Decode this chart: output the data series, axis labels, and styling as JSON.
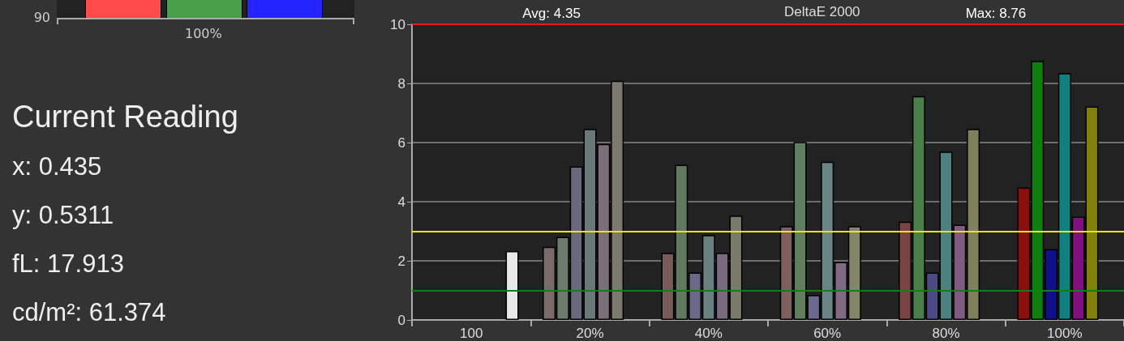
{
  "chart_data": [
    {
      "type": "other",
      "annotations": [
        "90",
        "100%"
      ]
    },
    {
      "type": "other",
      "title": "Current Reading",
      "annotations": [
        "x: 0.435",
        "y: 0.5311",
        "fL: 17.913",
        "cd/m²: 61.374"
      ]
    },
    {
      "type": "bar",
      "title": "DeltaE 2000",
      "annotations": [
        "Avg: 4.35",
        "Max: 8.76"
      ],
      "categories": [
        "100",
        "20%",
        "40%",
        "60%",
        "80%",
        "100%"
      ],
      "ylim": [
        0,
        10
      ],
      "yticks": [
        0,
        2,
        4,
        6,
        8,
        10
      ],
      "grid": "y",
      "ref_lines": [
        {
          "axis": "y",
          "value": 10,
          "color": "#e02020"
        },
        {
          "axis": "y",
          "value": 3,
          "color": "#e8e800"
        },
        {
          "axis": "y",
          "value": 1,
          "color": "#108010"
        }
      ],
      "series": [
        {
          "colors": [
            null,
            "#7a6a6a",
            "#7a5a5a",
            "#7d5f60",
            "#7a4444",
            "#8a1010"
          ],
          "values": [
            null,
            2.47,
            2.27,
            3.17,
            3.32,
            4.48
          ]
        },
        {
          "colors": [
            null,
            "#6d7a6d",
            "#5f7a5f",
            "#5f7f5f",
            "#4a7f4a",
            "#107f10"
          ],
          "values": [
            null,
            2.81,
            5.25,
            6.02,
            7.57,
            8.76
          ]
        },
        {
          "colors": [
            null,
            "#6a6a7a",
            "#6a6a88",
            "#6a6a90",
            "#4a4a85",
            "#10108a"
          ],
          "values": [
            null,
            5.19,
            1.6,
            0.84,
            1.6,
            2.4
          ]
        },
        {
          "colors": [
            null,
            "#6a7878",
            "#6a8080",
            "#6a8585",
            "#4f8080",
            "#108080"
          ],
          "values": [
            null,
            6.46,
            2.87,
            5.35,
            5.69,
            8.34
          ]
        },
        {
          "colors": [
            null,
            "#7a6e78",
            "#7a6a80",
            "#806a85",
            "#805a80",
            "#801080"
          ],
          "values": [
            null,
            5.95,
            2.27,
            1.96,
            3.22,
            3.49
          ]
        },
        {
          "colors": [
            null,
            "#7a7a6e",
            "#7a7a68",
            "#85856a",
            "#80805a",
            "#80800a"
          ],
          "values": [
            null,
            8.09,
            3.53,
            3.17,
            6.46,
            7.22
          ]
        },
        {
          "colors": [
            "#e8e8e8",
            null,
            null,
            null,
            null,
            null
          ],
          "values": [
            2.33,
            null,
            null,
            null,
            null,
            null
          ]
        }
      ]
    }
  ]
}
